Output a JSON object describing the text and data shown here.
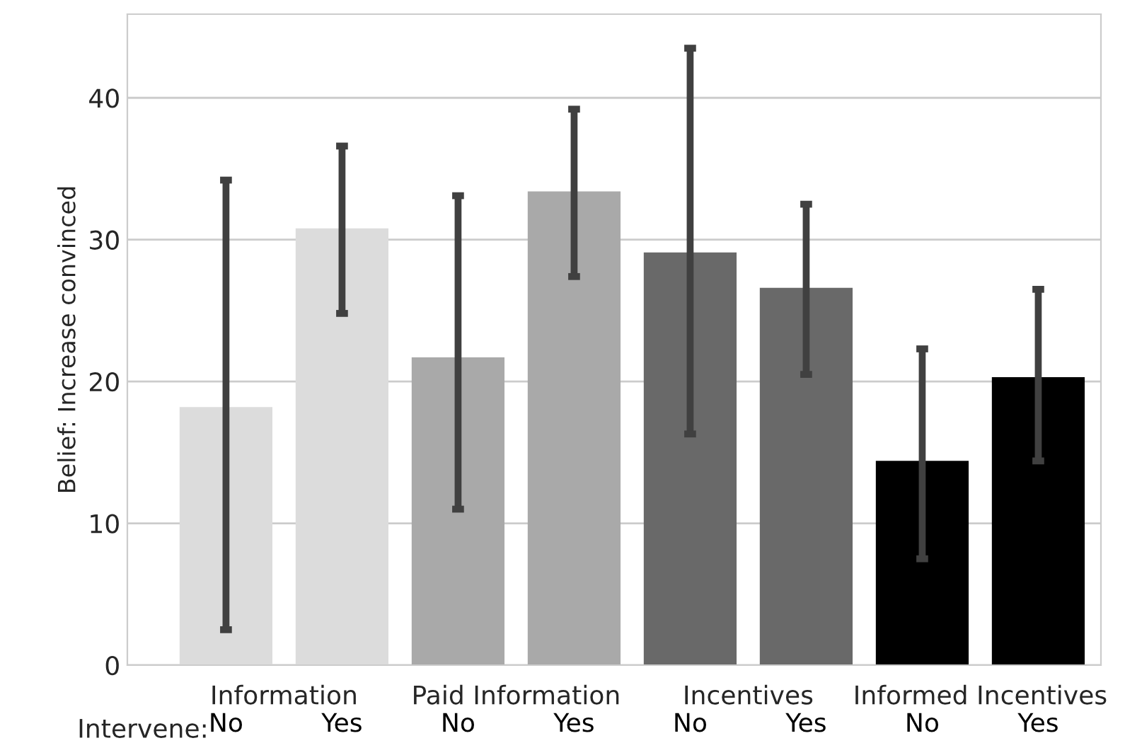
{
  "chart_data": {
    "type": "bar",
    "ylabel": "Belief: Increase convinced",
    "xlabel": "Intervene:",
    "categories": [
      "No",
      "Yes",
      "No",
      "Yes",
      "No",
      "Yes",
      "No",
      "Yes"
    ],
    "values": [
      18.2,
      30.8,
      21.7,
      33.4,
      29.1,
      26.6,
      14.4,
      20.3
    ],
    "colors": [
      "#dcdcdc",
      "#dcdcdc",
      "#a9a9a9",
      "#a9a9a9",
      "#696969",
      "#696969",
      "#000000",
      "#000000"
    ],
    "errors": [
      [
        2.5,
        34.2
      ],
      [
        24.8,
        36.6
      ],
      [
        11.0,
        33.1
      ],
      [
        27.4,
        39.2
      ],
      [
        16.3,
        43.5
      ],
      [
        20.5,
        32.5
      ],
      [
        7.5,
        22.3
      ],
      [
        14.4,
        26.5
      ]
    ],
    "annotations": [
      "Information",
      "Paid Information",
      "Incentives",
      "Informed Incentives"
    ],
    "ylim": [
      0,
      45.9
    ],
    "yticks": [
      0,
      10,
      20,
      30,
      40
    ],
    "grid": "y"
  }
}
